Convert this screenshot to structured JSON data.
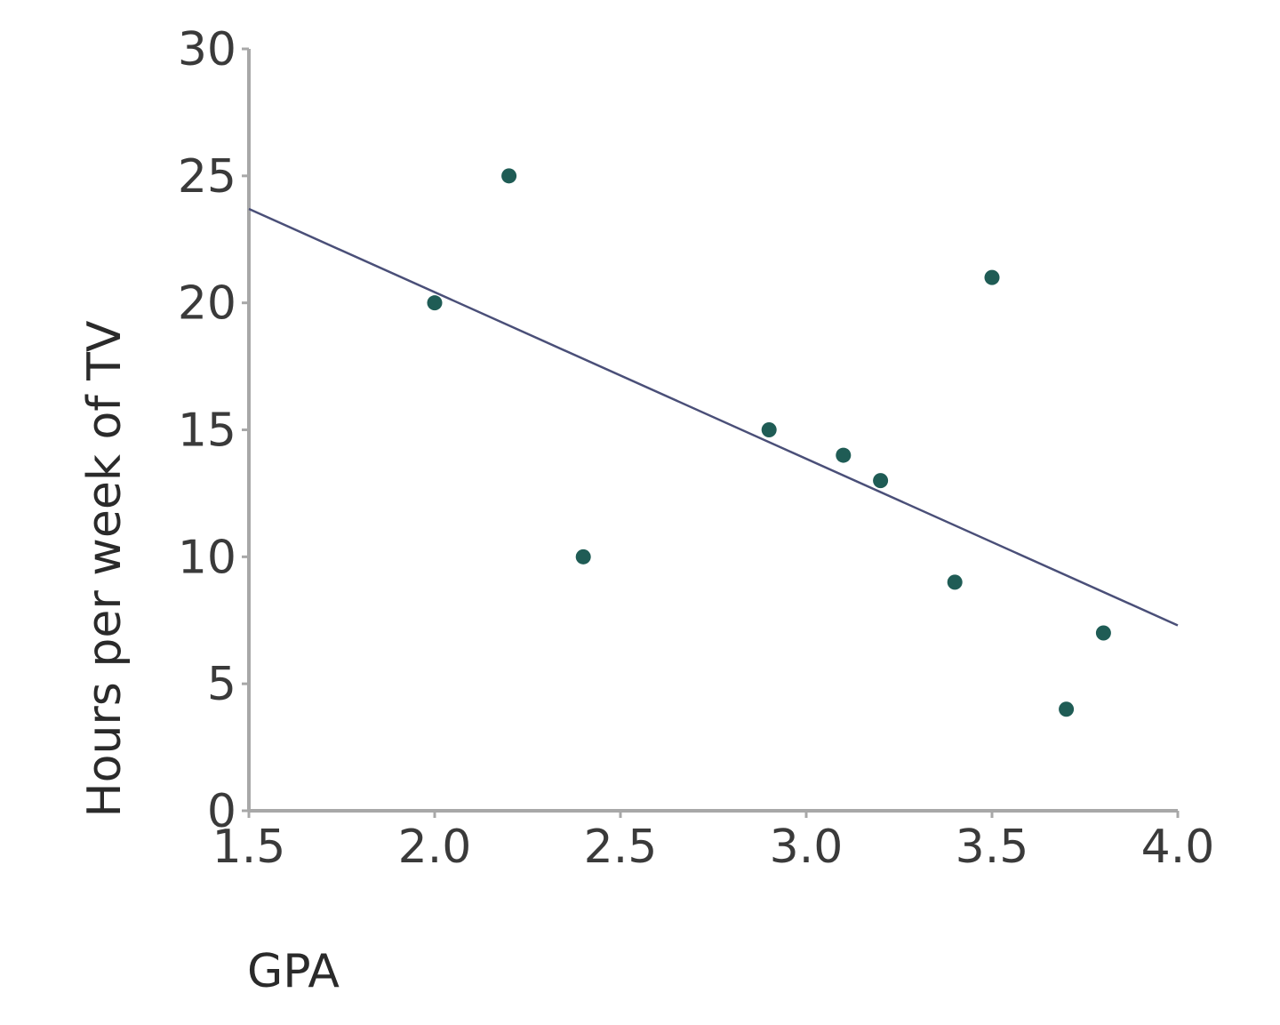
{
  "chart_data": {
    "type": "scatter",
    "title": "",
    "xlabel": "GPA",
    "ylabel": "Hours per week of TV",
    "xlim": [
      1.5,
      4.0
    ],
    "ylim": [
      0,
      30
    ],
    "x_ticks": [
      "1.5",
      "2.0",
      "2.5",
      "3.0",
      "3.5",
      "4.0"
    ],
    "y_ticks": [
      "0",
      "5",
      "10",
      "15",
      "20",
      "25",
      "30"
    ],
    "grid": false,
    "legend": "none",
    "series": [
      {
        "points": [
          {
            "x": 2.0,
            "y": 20
          },
          {
            "x": 2.2,
            "y": 25
          },
          {
            "x": 2.4,
            "y": 10
          },
          {
            "x": 2.9,
            "y": 15
          },
          {
            "x": 3.1,
            "y": 14
          },
          {
            "x": 3.2,
            "y": 13
          },
          {
            "x": 3.4,
            "y": 9
          },
          {
            "x": 3.5,
            "y": 21
          },
          {
            "x": 3.7,
            "y": 4
          },
          {
            "x": 3.8,
            "y": 7
          }
        ]
      }
    ],
    "trendline": {
      "x": [
        1.5,
        4.0
      ],
      "y": [
        23.7,
        7.3
      ]
    },
    "colors": {
      "point": "#1f5c55",
      "trendline": "#4a4f78",
      "axis": "#a8a8a8",
      "text": "#3a3a3a"
    }
  }
}
